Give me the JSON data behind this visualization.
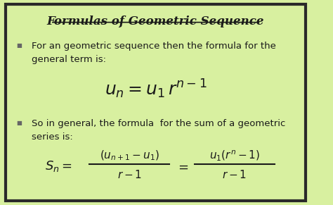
{
  "title": "Formulas of Geometric Sequence",
  "bg_color": "#d8f0a0",
  "border_color": "#2a2a2a",
  "text_color": "#1a1a1a",
  "bullet1": "For an geometric sequence then the formula for the\ngeneral term is:",
  "bullet2": "So in general, the formula  for the sum of a geometric\nseries is:",
  "figsize": [
    4.74,
    2.91
  ],
  "dpi": 100
}
